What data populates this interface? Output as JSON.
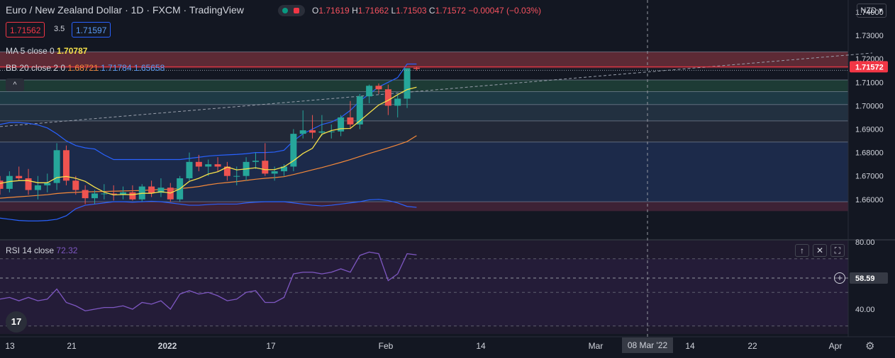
{
  "header": {
    "symbol_title": "Euro / New Zealand Dollar · 1D · FXCM · TradingView",
    "ohlc": {
      "o_label": "O",
      "o_value": "1.71619",
      "h_label": "H",
      "h_value": "1.71662",
      "l_label": "L",
      "l_value": "1.71503",
      "c_label": "C",
      "c_value": "1.71572",
      "change": "−0.00047 (−0.03%)"
    },
    "bid": "1.71562",
    "spread": "3.5",
    "ask": "1.71597",
    "currency": "NZD"
  },
  "legend": {
    "ma_label": "MA 5 close 0",
    "ma_value": "1.70787",
    "bb_label": "BB 20 close 2 0",
    "bb_basis": "1.68721",
    "bb_upper": "1.71784",
    "bb_lower": "1.65658",
    "collapse_icon": "chevron-up-icon"
  },
  "rsi": {
    "label": "RSI 14 close",
    "value": "72.32",
    "scale": [
      "80.00",
      "40.00"
    ],
    "crosshair_value": "58.59",
    "buttons": [
      "arrow-up-icon",
      "close-icon",
      "maximize-icon"
    ]
  },
  "price_axis": {
    "ticks": [
      "1.74000",
      "1.73000",
      "1.72000",
      "1.71000",
      "1.70000",
      "1.69000",
      "1.68000",
      "1.67000",
      "1.66000"
    ],
    "last_price": "1.71572"
  },
  "time_axis": {
    "ticks": [
      "13",
      "21",
      "2022",
      "17",
      "Feb",
      "14",
      "Mar",
      "14",
      "22",
      "Apr"
    ],
    "crosshair_date": "08 Mar '22"
  },
  "colors": {
    "up": "#26a69a",
    "down": "#ef5350",
    "ma": "#f7e14a",
    "bb_basis": "#f5893a",
    "bb_band": "#2962ff",
    "rsi": "#7e57c2",
    "background": "#131722"
  },
  "chart_data": {
    "type": "candlestick",
    "price_min": 1.655,
    "price_max": 1.745,
    "candles": [
      [
        1.668,
        1.67,
        1.662,
        1.6645
      ],
      [
        1.6645,
        1.672,
        1.663,
        1.67
      ],
      [
        1.67,
        1.674,
        1.668,
        1.669
      ],
      [
        1.669,
        1.673,
        1.662,
        1.664
      ],
      [
        1.664,
        1.67,
        1.66,
        1.666
      ],
      [
        1.666,
        1.671,
        1.663,
        1.667
      ],
      [
        1.667,
        1.684,
        1.664,
        1.681
      ],
      [
        1.681,
        1.683,
        1.666,
        1.668
      ],
      [
        1.668,
        1.67,
        1.662,
        1.664
      ],
      [
        1.664,
        1.666,
        1.658,
        1.6605
      ],
      [
        1.6605,
        1.664,
        1.658,
        1.6625
      ],
      [
        1.6625,
        1.6665,
        1.66,
        1.6625
      ],
      [
        1.6625,
        1.666,
        1.6595,
        1.6622
      ],
      [
        1.6622,
        1.6655,
        1.66,
        1.663
      ],
      [
        1.663,
        1.666,
        1.6595,
        1.66
      ],
      [
        1.66,
        1.6665,
        1.659,
        1.6655
      ],
      [
        1.6655,
        1.668,
        1.661,
        1.6628
      ],
      [
        1.6628,
        1.669,
        1.661,
        1.665
      ],
      [
        1.665,
        1.667,
        1.659,
        1.66
      ],
      [
        1.66,
        1.67,
        1.659,
        1.669
      ],
      [
        1.669,
        1.68,
        1.668,
        1.676
      ],
      [
        1.676,
        1.679,
        1.672,
        1.674
      ],
      [
        1.674,
        1.677,
        1.67,
        1.675
      ],
      [
        1.675,
        1.678,
        1.672,
        1.674
      ],
      [
        1.674,
        1.676,
        1.668,
        1.67
      ],
      [
        1.67,
        1.674,
        1.666,
        1.67
      ],
      [
        1.67,
        1.678,
        1.668,
        1.676
      ],
      [
        1.676,
        1.68,
        1.673,
        1.6765
      ],
      [
        1.6765,
        1.684,
        1.67,
        1.671
      ],
      [
        1.671,
        1.674,
        1.668,
        1.672
      ],
      [
        1.672,
        1.675,
        1.67,
        1.674
      ],
      [
        1.674,
        1.69,
        1.672,
        1.688
      ],
      [
        1.688,
        1.698,
        1.686,
        1.6895
      ],
      [
        1.6895,
        1.696,
        1.686,
        1.6885
      ],
      [
        1.6885,
        1.696,
        1.687,
        1.689
      ],
      [
        1.689,
        1.692,
        1.686,
        1.689
      ],
      [
        1.689,
        1.696,
        1.687,
        1.695
      ],
      [
        1.695,
        1.702,
        1.69,
        1.692
      ],
      [
        1.692,
        1.705,
        1.69,
        1.704
      ],
      [
        1.704,
        1.709,
        1.701,
        1.7085
      ],
      [
        1.7085,
        1.7095,
        1.705,
        1.707
      ],
      [
        1.707,
        1.709,
        1.696,
        1.7
      ],
      [
        1.7,
        1.705,
        1.695,
        1.703
      ],
      [
        1.703,
        1.716,
        1.699,
        1.716
      ],
      [
        1.71619,
        1.71662,
        1.71503,
        1.71572
      ]
    ],
    "ma5": [
      1.6668,
      1.6676,
      1.668,
      1.668,
      1.6671,
      1.6671,
      1.6693,
      1.6698,
      1.669,
      1.6677,
      1.6652,
      1.6631,
      1.6619,
      1.6621,
      1.662,
      1.6626,
      1.6626,
      1.6633,
      1.6627,
      1.6645,
      1.6677,
      1.669,
      1.6708,
      1.6718,
      1.6738,
      1.6726,
      1.673,
      1.6735,
      1.6727,
      1.6727,
      1.6739,
      1.6765,
      1.6796,
      1.6818,
      1.6878,
      1.6894,
      1.6902,
      1.6903,
      1.6935,
      1.6969,
      1.7003,
      1.7023,
      1.7047,
      1.7069,
      1.7079
    ],
    "bb_basis": [
      1.6605,
      1.6608,
      1.6611,
      1.6614,
      1.6617,
      1.662,
      1.6625,
      1.6628,
      1.663,
      1.6632,
      1.6633,
      1.6634,
      1.6635,
      1.6636,
      1.6637,
      1.6638,
      1.664,
      1.6642,
      1.6643,
      1.6646,
      1.665,
      1.6655,
      1.6662,
      1.6668,
      1.6672,
      1.6676,
      1.6681,
      1.6686,
      1.669,
      1.6693,
      1.6697,
      1.6706,
      1.6716,
      1.6726,
      1.6736,
      1.6747,
      1.6758,
      1.677,
      1.6783,
      1.6796,
      1.6808,
      1.682,
      1.6833,
      1.6847,
      1.6872
    ],
    "bb_upper": [
      1.692,
      1.6928,
      1.6928,
      1.6925,
      1.6918,
      1.6905,
      1.688,
      1.685,
      1.683,
      1.682,
      1.6815,
      1.679,
      1.677,
      1.677,
      1.677,
      1.677,
      1.677,
      1.677,
      1.677,
      1.677,
      1.6775,
      1.678,
      1.6785,
      1.6788,
      1.679,
      1.6792,
      1.6795,
      1.68,
      1.68,
      1.6802,
      1.681,
      1.685,
      1.688,
      1.69,
      1.692,
      1.693,
      1.695,
      1.698,
      1.702,
      1.705,
      1.708,
      1.71,
      1.712,
      1.7178,
      1.7178
    ],
    "bb_lower": [
      1.652,
      1.6515,
      1.651,
      1.6508,
      1.6508,
      1.651,
      1.6515,
      1.653,
      1.656,
      1.6575,
      1.658,
      1.6585,
      1.659,
      1.659,
      1.6588,
      1.659,
      1.6592,
      1.659,
      1.6585,
      1.658,
      1.6575,
      1.6575,
      1.6578,
      1.658,
      1.658,
      1.658,
      1.6585,
      1.6588,
      1.659,
      1.659,
      1.659,
      1.6585,
      1.658,
      1.6575,
      1.6572,
      1.6575,
      1.658,
      1.6585,
      1.659,
      1.6598,
      1.66,
      1.6595,
      1.6585,
      1.657,
      1.6566
    ],
    "rsi": [
      46,
      47,
      45,
      47,
      45,
      46,
      52,
      44,
      42,
      39,
      40,
      41,
      41,
      42,
      40,
      44,
      43,
      45,
      40,
      49,
      51,
      49,
      50,
      48,
      45,
      46,
      50,
      51,
      44,
      44,
      47,
      61,
      62,
      62,
      61,
      62,
      64,
      62,
      72,
      74,
      73,
      57,
      61,
      73,
      72.32
    ],
    "zones": [
      {
        "from": 1.716,
        "to": 1.723,
        "color": "#5d2a35"
      },
      {
        "from": 1.706,
        "to": 1.711,
        "color": "#1d3b35"
      },
      {
        "from": 1.7005,
        "to": 1.706,
        "color": "#1e3a45"
      },
      {
        "from": 1.6935,
        "to": 1.7005,
        "color": "#223040"
      },
      {
        "from": 1.6845,
        "to": 1.6935,
        "color": "#222837"
      },
      {
        "from": 1.659,
        "to": 1.6845,
        "color": "#1c2a4a"
      },
      {
        "from": 1.655,
        "to": 1.659,
        "color": "#3d2235"
      }
    ]
  }
}
